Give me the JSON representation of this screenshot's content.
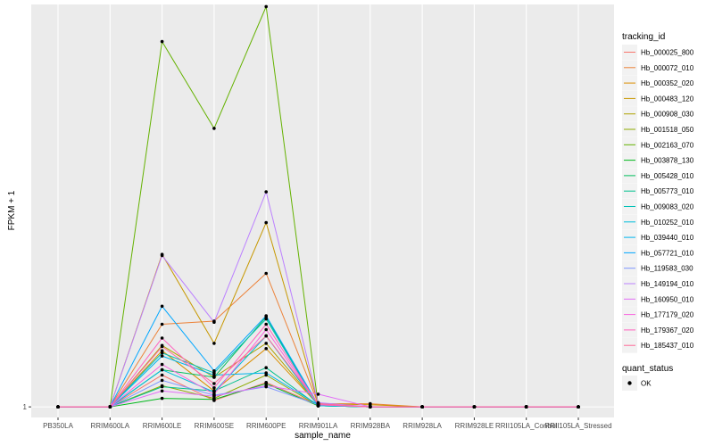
{
  "chart_data": {
    "type": "line",
    "xlabel": "sample_name",
    "ylabel": "FPKM + 1",
    "x": [
      "PB350LA",
      "RRIM600LA",
      "RRIM600LE",
      "RRIM600SE",
      "RRIM600PE",
      "RRIM901LA",
      "RRIM928BA",
      "RRIM928LA",
      "RRIM928LE",
      "RRII105LA_Control",
      "RRII105LA_Stressed"
    ],
    "yticks": [
      1
    ],
    "ylim": [
      0.9,
      4.8
    ],
    "grid": true,
    "legend_title": "tracking_id",
    "legend_placement": "right",
    "shape_legend_title": "quant_status",
    "shape_legend_label": "OK",
    "series": [
      {
        "name": "Hb_000025_800",
        "color": "#F8766D",
        "values": [
          1,
          1,
          1.3,
          1.06,
          1.23,
          1.02,
          1,
          1,
          1,
          1,
          1
        ]
      },
      {
        "name": "Hb_000072_010",
        "color": "#EC8239",
        "values": [
          1,
          1,
          1.78,
          1.81,
          2.26,
          1.03,
          1.03,
          1,
          1,
          1,
          1
        ]
      },
      {
        "name": "Hb_000352_020",
        "color": "#DB8E00",
        "values": [
          1,
          1,
          1.53,
          1.15,
          1.55,
          1.02,
          1,
          1,
          1,
          1,
          1
        ]
      },
      {
        "name": "Hb_000483_120",
        "color": "#C79800",
        "values": [
          1,
          1,
          2.44,
          1.6,
          2.74,
          1.03,
          1.02,
          1,
          1,
          1,
          1
        ]
      },
      {
        "name": "Hb_000908_030",
        "color": "#AEA200",
        "values": [
          1,
          1,
          1.58,
          1.28,
          1.6,
          1.02,
          1,
          1,
          1,
          1,
          1
        ]
      },
      {
        "name": "Hb_001518_050",
        "color": "#8FAA00",
        "values": [
          1,
          1,
          1.2,
          1.08,
          1.3,
          1.01,
          1,
          1,
          1,
          1,
          1
        ]
      },
      {
        "name": "Hb_002163_070",
        "color": "#64B200",
        "values": [
          1,
          1,
          4.45,
          3.63,
          4.78,
          1.02,
          1,
          1,
          1,
          1,
          1
        ]
      },
      {
        "name": "Hb_003878_130",
        "color": "#00B81B",
        "values": [
          1,
          1,
          1.08,
          1.07,
          1.22,
          1.01,
          1,
          1,
          1,
          1,
          1
        ]
      },
      {
        "name": "Hb_005428_010",
        "color": "#00BD5C",
        "values": [
          1,
          1,
          1.35,
          1.28,
          1.85,
          1.01,
          1,
          1,
          1,
          1,
          1
        ]
      },
      {
        "name": "Hb_005773_010",
        "color": "#00C08E",
        "values": [
          1,
          1,
          1.19,
          1.15,
          1.37,
          1.01,
          1,
          1,
          1,
          1,
          1
        ]
      },
      {
        "name": "Hb_009083_020",
        "color": "#00C1B7",
        "values": [
          1,
          1,
          1.51,
          1.32,
          1.83,
          1.01,
          1,
          1,
          1,
          1,
          1
        ]
      },
      {
        "name": "Hb_010252_010",
        "color": "#00BDDC",
        "values": [
          1,
          1,
          1.35,
          1.14,
          1.67,
          1.01,
          1,
          1,
          1,
          1,
          1
        ]
      },
      {
        "name": "Hb_039440_010",
        "color": "#00B5EE",
        "values": [
          1,
          1,
          1.48,
          1.3,
          1.32,
          1.02,
          1,
          1,
          1,
          1,
          1
        ]
      },
      {
        "name": "Hb_057721_010",
        "color": "#00A7FF",
        "values": [
          1,
          1,
          1.95,
          1.34,
          1.86,
          1.02,
          1,
          1,
          1,
          1,
          1
        ]
      },
      {
        "name": "Hb_119583_030",
        "color": "#7F96FF",
        "values": [
          1,
          1,
          1.25,
          1.11,
          1.19,
          1.02,
          1,
          1,
          1,
          1,
          1
        ]
      },
      {
        "name": "Hb_149194_010",
        "color": "#BC81FF",
        "values": [
          1,
          1,
          2.43,
          1.8,
          3.03,
          1.04,
          1,
          1,
          1,
          1,
          1
        ]
      },
      {
        "name": "Hb_160950_010",
        "color": "#E26EF7",
        "values": [
          1,
          1,
          1.15,
          1.1,
          1.2,
          1.12,
          1,
          1,
          1,
          1,
          1
        ]
      },
      {
        "name": "Hb_177179_020",
        "color": "#F863DF",
        "values": [
          1,
          1,
          1.4,
          1.12,
          1.73,
          1.02,
          1,
          1,
          1,
          1,
          1
        ]
      },
      {
        "name": "Hb_179367_020",
        "color": "#FF62BF",
        "values": [
          1,
          1,
          1.65,
          1.18,
          1.78,
          1.02,
          1,
          1,
          1,
          1,
          1
        ]
      },
      {
        "name": "Hb_185437_010",
        "color": "#FF6A98",
        "values": [
          1,
          1,
          1.57,
          1.22,
          1.67,
          1.03,
          1,
          1,
          1,
          1,
          1
        ]
      }
    ]
  }
}
